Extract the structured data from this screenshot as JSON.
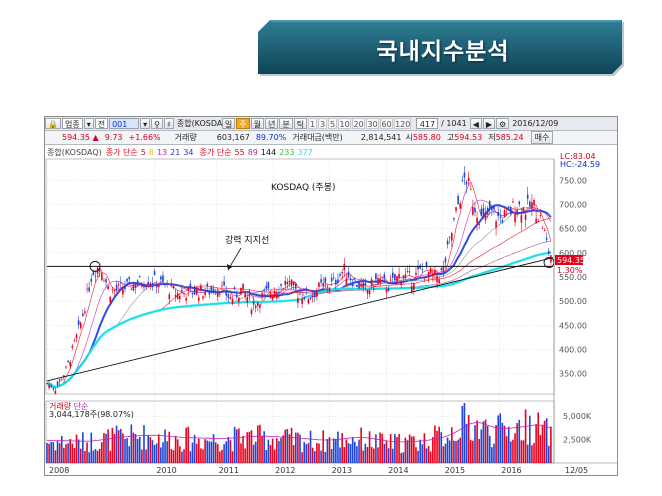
{
  "banner": {
    "title": "국내지수분석",
    "bg_color": "#1d5c71"
  },
  "toolbar": {
    "market": "업종",
    "market_toggle": "전",
    "code": "001",
    "index_name": "종합(KOSDAQ)",
    "periods": [
      "일",
      "주",
      "월",
      "년",
      "분",
      "틱"
    ],
    "selected_period": "주",
    "intervals": [
      "1",
      "3",
      "5",
      "10",
      "20",
      "30",
      "60",
      "120"
    ],
    "count": "417",
    "count_total": "/ 1041",
    "date": "2016/12/09"
  },
  "quote": {
    "price": "594.35",
    "arrow": "▲",
    "change": "9.73",
    "change_pct": "+1.66%",
    "volume_label": "거래량",
    "volume": "603,167",
    "volume_ratio": "89.70%",
    "amount_label": "거래대금(백만)",
    "amount": "2,814,541",
    "open_label": "시",
    "open": "585.80",
    "high_label": "고",
    "high": "594.53",
    "low_label": "저",
    "low": "585.24",
    "buy_label": "매수"
  },
  "legend": {
    "name": "종합(KOSDAQ)",
    "ma1_label": "종가 단순",
    "ma1_periods": [
      "5",
      "8",
      "13",
      "21",
      "34"
    ],
    "ma2_label": "종가 단순",
    "ma2_periods": [
      "55",
      "89",
      "144",
      "233",
      "377"
    ]
  },
  "chart": {
    "name_label": "KOSDAQ (주봉)",
    "annotation": "강력 지지선",
    "lc_label": "LC:83.04",
    "hc_label": "HC:-24.59",
    "last_price": "594.35",
    "last_pct": "1.30%",
    "volume_title": "거래량",
    "volume_title_2": "단순",
    "volume_info": "3,044,178주(98.07%)",
    "corner_label": "12/05",
    "colors": {
      "up": "#e8001c",
      "down": "#1e45d8",
      "ma_blue": "#1638e8",
      "ma_cyan": "#19e3f0"
    }
  },
  "chart_data": {
    "type": "candlestick",
    "title": "KOSDAQ (주봉)",
    "price_axis": {
      "ticks": [
        350,
        400,
        450,
        500,
        550,
        600,
        650,
        700,
        750
      ],
      "labels": [
        "350.00",
        "400.00",
        "450.00",
        "500.00",
        "550.00",
        "600.00",
        "650.00",
        "700.00",
        "750.00"
      ],
      "range": [
        310,
        790
      ]
    },
    "volume_axis": {
      "ticks": [
        2500,
        5000
      ],
      "labels": [
        "2,500K",
        "5,000K"
      ],
      "range": [
        0,
        6400
      ]
    },
    "x_labels": [
      "2008",
      "2010",
      "2011",
      "2012",
      "2013",
      "2014",
      "2015",
      "2016"
    ],
    "x_label_dates": [
      2008.0,
      2009.9,
      2011.0,
      2012.0,
      2013.0,
      2014.0,
      2015.0,
      2016.0
    ],
    "x_range": [
      2008.0,
      2016.95
    ],
    "close_path": [
      [
        2008.0,
        330
      ],
      [
        2008.15,
        320
      ],
      [
        2008.35,
        360
      ],
      [
        2008.6,
        455
      ],
      [
        2008.8,
        560
      ],
      [
        2008.95,
        575
      ],
      [
        2009.1,
        520
      ],
      [
        2009.3,
        525
      ],
      [
        2009.55,
        535
      ],
      [
        2009.8,
        545
      ],
      [
        2010.05,
        535
      ],
      [
        2010.3,
        515
      ],
      [
        2010.55,
        520
      ],
      [
        2010.85,
        520
      ],
      [
        2011.05,
        530
      ],
      [
        2011.25,
        505
      ],
      [
        2011.45,
        525
      ],
      [
        2011.65,
        490
      ],
      [
        2011.85,
        515
      ],
      [
        2012.05,
        525
      ],
      [
        2012.25,
        540
      ],
      [
        2012.45,
        515
      ],
      [
        2012.65,
        510
      ],
      [
        2012.85,
        530
      ],
      [
        2013.05,
        535
      ],
      [
        2013.25,
        565
      ],
      [
        2013.45,
        540
      ],
      [
        2013.65,
        520
      ],
      [
        2013.85,
        545
      ],
      [
        2014.05,
        530
      ],
      [
        2014.25,
        555
      ],
      [
        2014.45,
        545
      ],
      [
        2014.65,
        565
      ],
      [
        2014.85,
        550
      ],
      [
        2015.0,
        560
      ],
      [
        2015.12,
        620
      ],
      [
        2015.25,
        690
      ],
      [
        2015.4,
        760
      ],
      [
        2015.55,
        700
      ],
      [
        2015.7,
        665
      ],
      [
        2015.85,
        685
      ],
      [
        2016.0,
        670
      ],
      [
        2016.15,
        680
      ],
      [
        2016.3,
        700
      ],
      [
        2016.45,
        690
      ],
      [
        2016.6,
        700
      ],
      [
        2016.75,
        665
      ],
      [
        2016.88,
        600
      ],
      [
        2016.94,
        594.35
      ]
    ],
    "volume_path": [
      [
        2008.0,
        2400
      ],
      [
        2008.6,
        2300
      ],
      [
        2009.2,
        2800
      ],
      [
        2009.7,
        3000
      ],
      [
        2010.3,
        2700
      ],
      [
        2011.0,
        2600
      ],
      [
        2011.6,
        2900
      ],
      [
        2012.2,
        2700
      ],
      [
        2012.8,
        2400
      ],
      [
        2013.4,
        2800
      ],
      [
        2014.0,
        2200
      ],
      [
        2014.6,
        2400
      ],
      [
        2015.0,
        3000
      ],
      [
        2015.4,
        4600
      ],
      [
        2015.8,
        3600
      ],
      [
        2016.2,
        3800
      ],
      [
        2016.6,
        4200
      ],
      [
        2016.94,
        3044
      ]
    ],
    "moving_averages": [
      {
        "name": "5",
        "color": "#e8001c"
      },
      {
        "name": "13",
        "color": "#c020c0"
      },
      {
        "name": "21",
        "color": "#1638e8"
      },
      {
        "name": "34",
        "color": "#8a8a8a"
      },
      {
        "name": "55",
        "color": "#e8001c"
      },
      {
        "name": "89",
        "color": "#9a3b8c"
      },
      {
        "name": "144",
        "color": "#111111"
      },
      {
        "name": "233",
        "color": "#39b839"
      },
      {
        "name": "377",
        "color": "#19e3f0"
      }
    ],
    "support_line": {
      "from": [
        2008.0,
        335
      ],
      "to": [
        2016.95,
        590
      ]
    },
    "horizontal_support": {
      "value": 572
    },
    "circles": [
      [
        2008.85,
        572
      ],
      [
        2016.88,
        580
      ]
    ]
  }
}
